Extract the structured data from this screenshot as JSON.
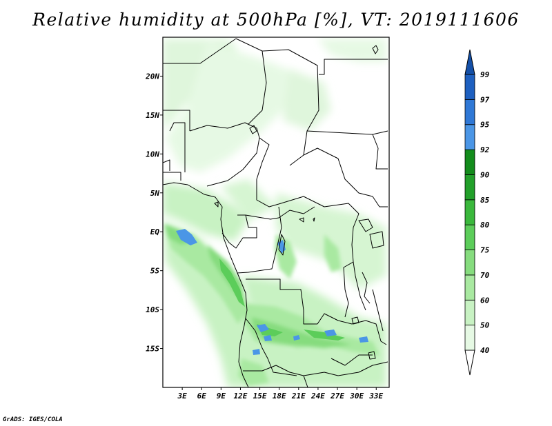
{
  "title": "Relative humidity at 500hPa [%], VT: 2019111606",
  "footer": "GrADS: IGES/COLA",
  "map": {
    "lat_labels": [
      "20N",
      "15N",
      "10N",
      "5N",
      "EQ",
      "5S",
      "10S",
      "15S"
    ],
    "lat_values": [
      20,
      15,
      10,
      5,
      0,
      -5,
      -10,
      -15
    ],
    "lon_labels": [
      "3E",
      "6E",
      "9E",
      "12E",
      "15E",
      "18E",
      "21E",
      "24E",
      "27E",
      "30E",
      "33E"
    ],
    "lon_values": [
      3,
      6,
      9,
      12,
      15,
      18,
      21,
      24,
      27,
      30,
      33
    ],
    "lon_range": [
      0,
      35
    ],
    "lat_range": [
      -20,
      25
    ]
  },
  "colorbar": {
    "labels": [
      "99",
      "97",
      "95",
      "92",
      "90",
      "85",
      "80",
      "75",
      "70",
      "60",
      "50",
      "40"
    ],
    "colors": [
      "#ffffff",
      "#e6f9e4",
      "#c8f2c3",
      "#a9e9a1",
      "#86dc7e",
      "#5ccd5a",
      "#3ab83c",
      "#22a02a",
      "#138c1c",
      "#4b96e6",
      "#2f78d6",
      "#1e60c0",
      "#1450a8"
    ]
  }
}
